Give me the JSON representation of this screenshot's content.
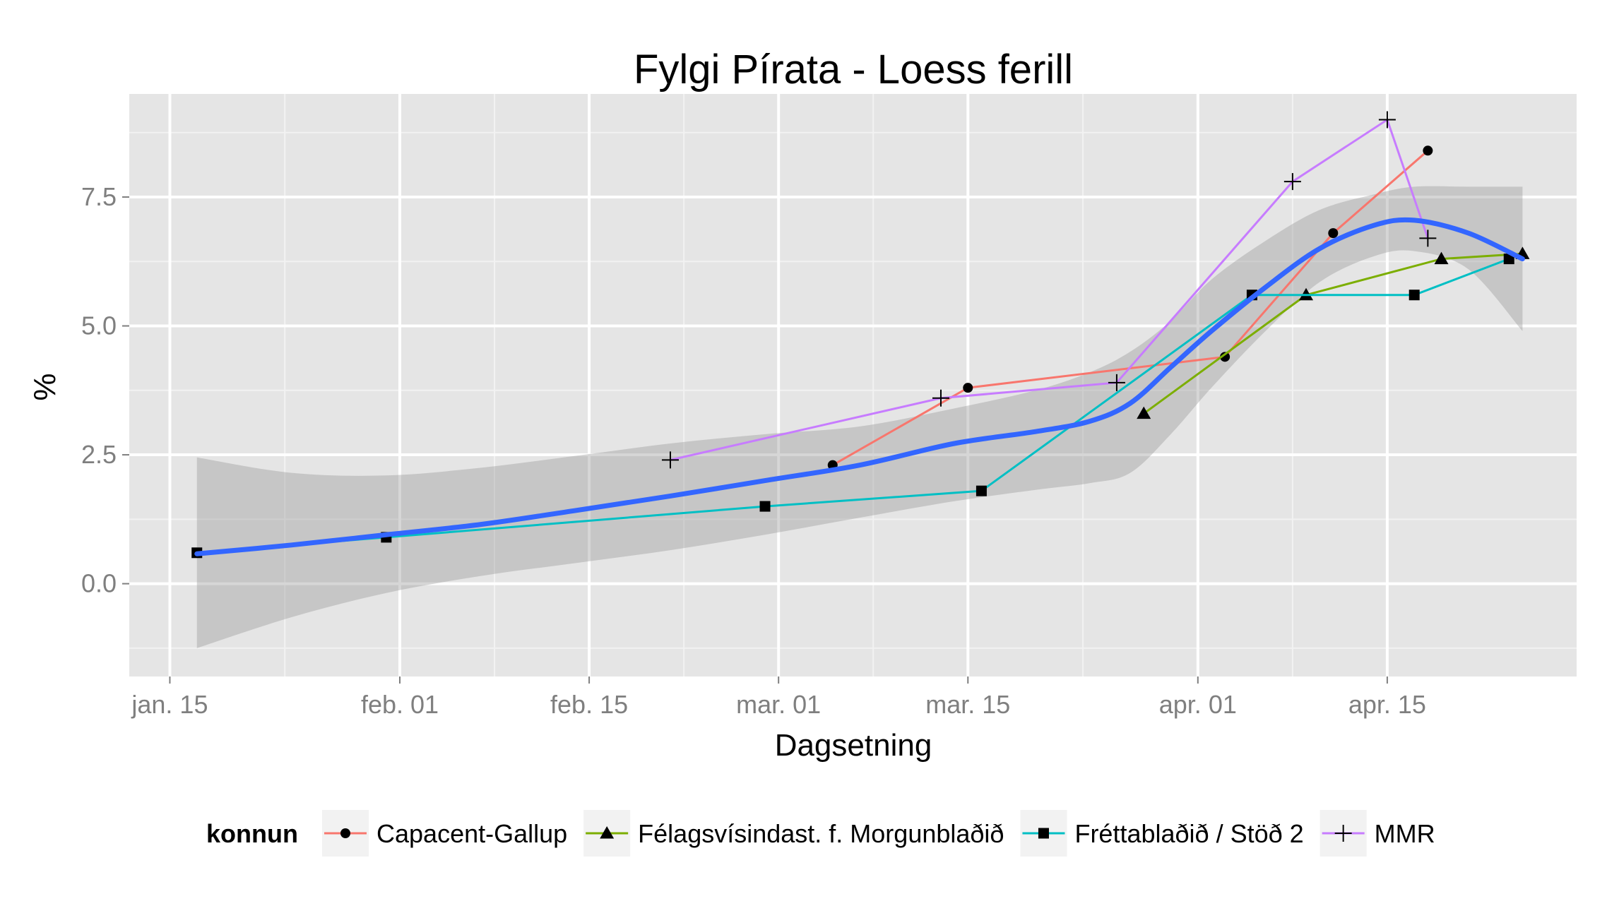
{
  "chart_data": {
    "type": "line",
    "title": "Fylgi Pírata - Loess ferill",
    "xlabel": "Dagsetning",
    "ylabel": "%",
    "x_axis": {
      "scale": "date",
      "range": [
        "2013-01-12",
        "2013-04-29"
      ],
      "ticks": [
        {
          "date": "2013-01-15",
          "label": "jan. 15"
        },
        {
          "date": "2013-02-01",
          "label": "feb. 01"
        },
        {
          "date": "2013-02-15",
          "label": "feb. 15"
        },
        {
          "date": "2013-03-01",
          "label": "mar. 01"
        },
        {
          "date": "2013-03-15",
          "label": "mar. 15"
        },
        {
          "date": "2013-04-01",
          "label": "apr. 01"
        },
        {
          "date": "2013-04-15",
          "label": "apr. 15"
        }
      ]
    },
    "y_axis": {
      "range": [
        -1.8,
        9.5
      ],
      "ticks": [
        {
          "value": 0,
          "label": "0.0"
        },
        {
          "value": 2.5,
          "label": "2.5"
        },
        {
          "value": 5,
          "label": "5.0"
        },
        {
          "value": 7.5,
          "label": "7.5"
        }
      ]
    },
    "grid": true,
    "legend": {
      "position": "bottom",
      "title": "konnun"
    },
    "series": [
      {
        "name": "Capacent-Gallup",
        "color": "#F8766D",
        "marker": "circle",
        "points": [
          {
            "x": "2013-03-05",
            "y": 2.3
          },
          {
            "x": "2013-03-15",
            "y": 3.8
          },
          {
            "x": "2013-04-03",
            "y": 4.4
          },
          {
            "x": "2013-04-11",
            "y": 6.8
          },
          {
            "x": "2013-04-18",
            "y": 8.4
          }
        ]
      },
      {
        "name": "Félagsvísindast. f. Morgunblaðið",
        "color": "#7CAE00",
        "marker": "triangle",
        "points": [
          {
            "x": "2013-03-28",
            "y": 3.3
          },
          {
            "x": "2013-04-09",
            "y": 5.6
          },
          {
            "x": "2013-04-19",
            "y": 6.3
          },
          {
            "x": "2013-04-25",
            "y": 6.4
          }
        ]
      },
      {
        "name": "Fréttablaðið / Stöð 2",
        "color": "#00BFC4",
        "marker": "square",
        "points": [
          {
            "x": "2013-01-17",
            "y": 0.6
          },
          {
            "x": "2013-01-31",
            "y": 0.9
          },
          {
            "x": "2013-02-28",
            "y": 1.5
          },
          {
            "x": "2013-03-16",
            "y": 1.8
          },
          {
            "x": "2013-04-05",
            "y": 5.6
          },
          {
            "x": "2013-04-17",
            "y": 5.6
          },
          {
            "x": "2013-04-24",
            "y": 6.3
          }
        ]
      },
      {
        "name": "MMR",
        "color": "#C77CFF",
        "marker": "plus",
        "points": [
          {
            "x": "2013-02-21",
            "y": 2.4
          },
          {
            "x": "2013-03-13",
            "y": 3.6
          },
          {
            "x": "2013-03-26",
            "y": 3.9
          },
          {
            "x": "2013-04-08",
            "y": 7.8
          },
          {
            "x": "2013-04-15",
            "y": 9.0
          },
          {
            "x": "2013-04-18",
            "y": 6.7
          }
        ]
      }
    ],
    "loess": {
      "color": "#3366FF",
      "band_color": "#999999",
      "points": [
        {
          "x": "2013-01-17",
          "y": 0.58,
          "lower": -1.25,
          "upper": 2.45
        },
        {
          "x": "2013-01-24",
          "y": 0.75,
          "lower": -0.65,
          "upper": 2.15
        },
        {
          "x": "2013-01-31",
          "y": 0.95,
          "lower": -0.18,
          "upper": 2.1
        },
        {
          "x": "2013-02-07",
          "y": 1.15,
          "lower": 0.15,
          "upper": 2.25
        },
        {
          "x": "2013-02-14",
          "y": 1.42,
          "lower": 0.4,
          "upper": 2.48
        },
        {
          "x": "2013-02-21",
          "y": 1.7,
          "lower": 0.65,
          "upper": 2.72
        },
        {
          "x": "2013-02-28",
          "y": 2.0,
          "lower": 0.95,
          "upper": 2.9
        },
        {
          "x": "2013-03-07",
          "y": 2.3,
          "lower": 1.28,
          "upper": 3.05
        },
        {
          "x": "2013-03-14",
          "y": 2.72,
          "lower": 1.6,
          "upper": 3.4
        },
        {
          "x": "2013-03-20",
          "y": 2.95,
          "lower": 1.82,
          "upper": 3.75
        },
        {
          "x": "2013-03-24",
          "y": 3.15,
          "lower": 1.95,
          "upper": 4.1
        },
        {
          "x": "2013-03-27",
          "y": 3.5,
          "lower": 2.15,
          "upper": 4.5
        },
        {
          "x": "2013-03-30",
          "y": 4.2,
          "lower": 2.9,
          "upper": 5.1
        },
        {
          "x": "2013-04-02",
          "y": 4.9,
          "lower": 3.8,
          "upper": 5.9
        },
        {
          "x": "2013-04-06",
          "y": 5.75,
          "lower": 4.9,
          "upper": 6.65
        },
        {
          "x": "2013-04-10",
          "y": 6.5,
          "lower": 5.85,
          "upper": 7.25
        },
        {
          "x": "2013-04-14",
          "y": 6.95,
          "lower": 6.35,
          "upper": 7.55
        },
        {
          "x": "2013-04-17",
          "y": 7.05,
          "lower": 6.45,
          "upper": 7.7
        },
        {
          "x": "2013-04-21",
          "y": 6.8,
          "lower": 6.1,
          "upper": 7.7
        },
        {
          "x": "2013-04-25",
          "y": 6.3,
          "lower": 4.9,
          "upper": 7.7
        }
      ]
    }
  }
}
